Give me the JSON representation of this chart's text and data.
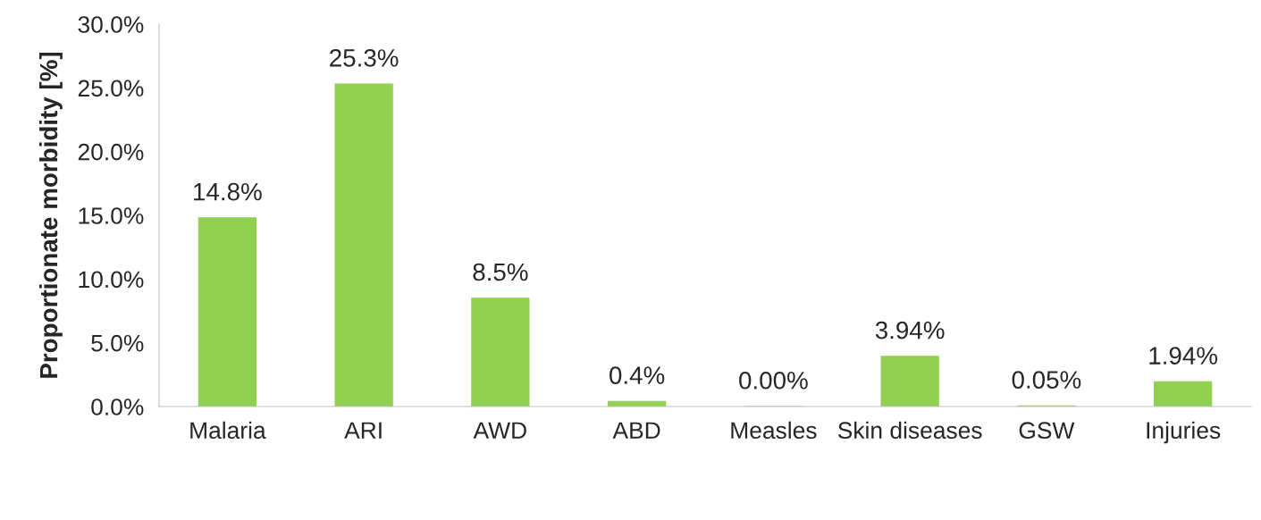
{
  "chart_data": {
    "type": "bar",
    "ylabel": "Proportionate morbidity [%]",
    "categories": [
      "Malaria",
      "ARI",
      "AWD",
      "ABD",
      "Measles",
      "Skin diseases",
      "GSW",
      "Injuries"
    ],
    "values": [
      14.8,
      25.3,
      8.5,
      0.4,
      0.0,
      3.94,
      0.05,
      1.94
    ],
    "value_labels": [
      "14.8%",
      "25.3%",
      "8.5%",
      "0.4%",
      "0.00%",
      "3.94%",
      "0.05%",
      "1.94%"
    ],
    "color": "#92d050",
    "ylim": [
      0,
      30
    ],
    "yticks": [
      {
        "value": 0,
        "label": "0.0%"
      },
      {
        "value": 5,
        "label": "5.0%"
      },
      {
        "value": 10,
        "label": "10.0%"
      },
      {
        "value": 15,
        "label": "15.0%"
      },
      {
        "value": 20,
        "label": "20.0%"
      },
      {
        "value": 25,
        "label": "25.0%"
      },
      {
        "value": 30,
        "label": "30.0%"
      }
    ],
    "grid": false
  }
}
